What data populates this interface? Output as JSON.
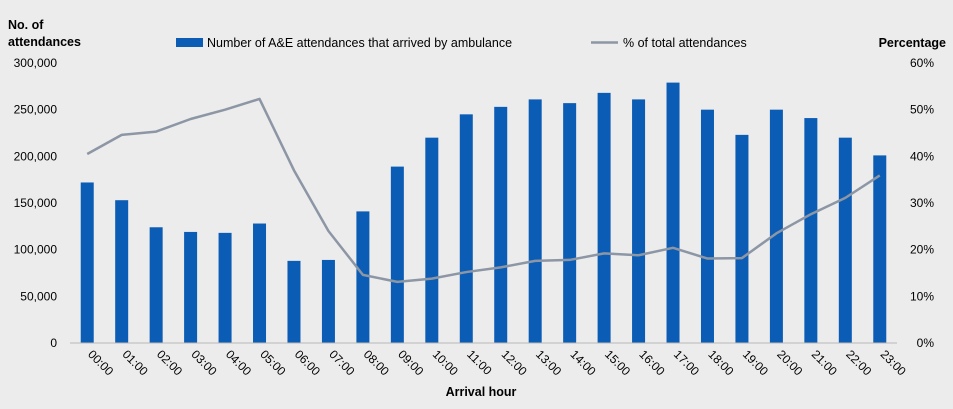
{
  "chart_data": {
    "type": "bar",
    "categories": [
      "00:00",
      "01:00",
      "02:00",
      "03:00",
      "04:00",
      "05:00",
      "06:00",
      "07:00",
      "08:00",
      "09:00",
      "10:00",
      "11:00",
      "12:00",
      "13:00",
      "14:00",
      "15:00",
      "16:00",
      "17:00",
      "18:00",
      "19:00",
      "20:00",
      "21:00",
      "22:00",
      "23:00"
    ],
    "series": [
      {
        "name": "Number of A&E attendances that arrived by ambulance",
        "type": "bar",
        "axis": "left",
        "color": "#0b5cb5",
        "values": [
          172000,
          153000,
          124000,
          119000,
          118000,
          128000,
          88000,
          89000,
          141000,
          189000,
          220000,
          245000,
          253000,
          261000,
          257000,
          268000,
          261000,
          279000,
          250000,
          223000,
          250000,
          241000,
          220000,
          201000
        ]
      },
      {
        "name": "% of total attendances",
        "type": "line",
        "axis": "right",
        "color": "#8c96a4",
        "values": [
          40.5,
          44.6,
          45.3,
          48.0,
          50.0,
          52.3,
          37.0,
          24.0,
          14.6,
          13.1,
          13.8,
          15.2,
          16.2,
          17.6,
          17.8,
          19.2,
          18.8,
          20.4,
          18.1,
          18.2,
          23.5,
          27.6,
          31.1,
          35.9
        ]
      }
    ],
    "xlabel": "Arrival hour",
    "ylabel_left": "No. of attendances",
    "ylabel_left_lines": [
      "No. of",
      "attendances"
    ],
    "ylabel_right": "Percentage",
    "ylim_left": [
      0,
      300000
    ],
    "ylim_right": [
      0,
      60
    ],
    "yticks_left": [
      "0",
      "50,000",
      "100,000",
      "150,000",
      "200,000",
      "250,000",
      "300,000"
    ],
    "yticks_right": [
      "0%",
      "10%",
      "20%",
      "30%",
      "40%",
      "50%",
      "60%"
    ],
    "grid": false,
    "legend": "top"
  }
}
